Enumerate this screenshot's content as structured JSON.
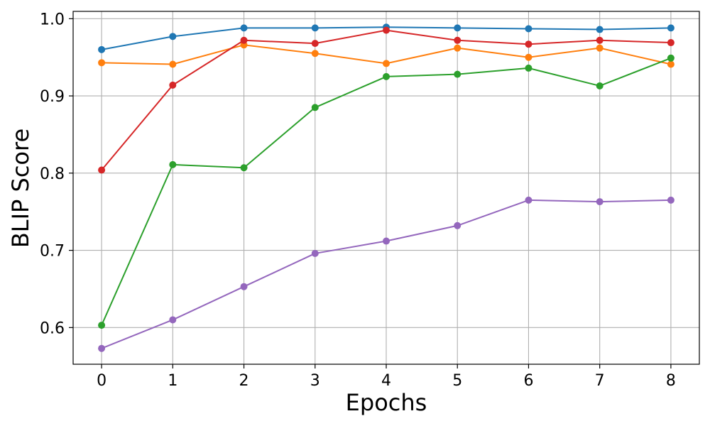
{
  "chart_data": {
    "type": "line",
    "title": "",
    "xlabel": "Epochs",
    "ylabel": "BLIP Score",
    "x": [
      0,
      1,
      2,
      3,
      4,
      5,
      6,
      7,
      8
    ],
    "xlim": [
      -0.4,
      8.4
    ],
    "ylim": [
      0.5525,
      1.0095
    ],
    "xticks": [
      "0",
      "1",
      "2",
      "3",
      "4",
      "5",
      "6",
      "7",
      "8"
    ],
    "yticks": [
      "0.6",
      "0.7",
      "0.8",
      "0.9",
      "1.0"
    ],
    "ytick_values": [
      0.6,
      0.7,
      0.8,
      0.9,
      1.0
    ],
    "grid": true,
    "legend": "none",
    "series": [
      {
        "color": "#1f77b4",
        "values": [
          0.96,
          0.977,
          0.988,
          0.988,
          0.989,
          0.988,
          0.987,
          0.986,
          0.988
        ]
      },
      {
        "color": "#ff7f0e",
        "values": [
          0.943,
          0.941,
          0.966,
          0.955,
          0.942,
          0.962,
          0.95,
          0.962,
          0.941
        ]
      },
      {
        "color": "#2ca02c",
        "values": [
          0.603,
          0.811,
          0.807,
          0.885,
          0.925,
          0.928,
          0.936,
          0.913,
          0.949
        ]
      },
      {
        "color": "#d62728",
        "values": [
          0.804,
          0.914,
          0.972,
          0.968,
          0.985,
          0.972,
          0.967,
          0.972,
          0.969
        ]
      },
      {
        "color": "#9467bd",
        "values": [
          0.573,
          0.61,
          0.653,
          0.696,
          0.712,
          0.732,
          0.765,
          0.763,
          0.765
        ]
      }
    ]
  }
}
